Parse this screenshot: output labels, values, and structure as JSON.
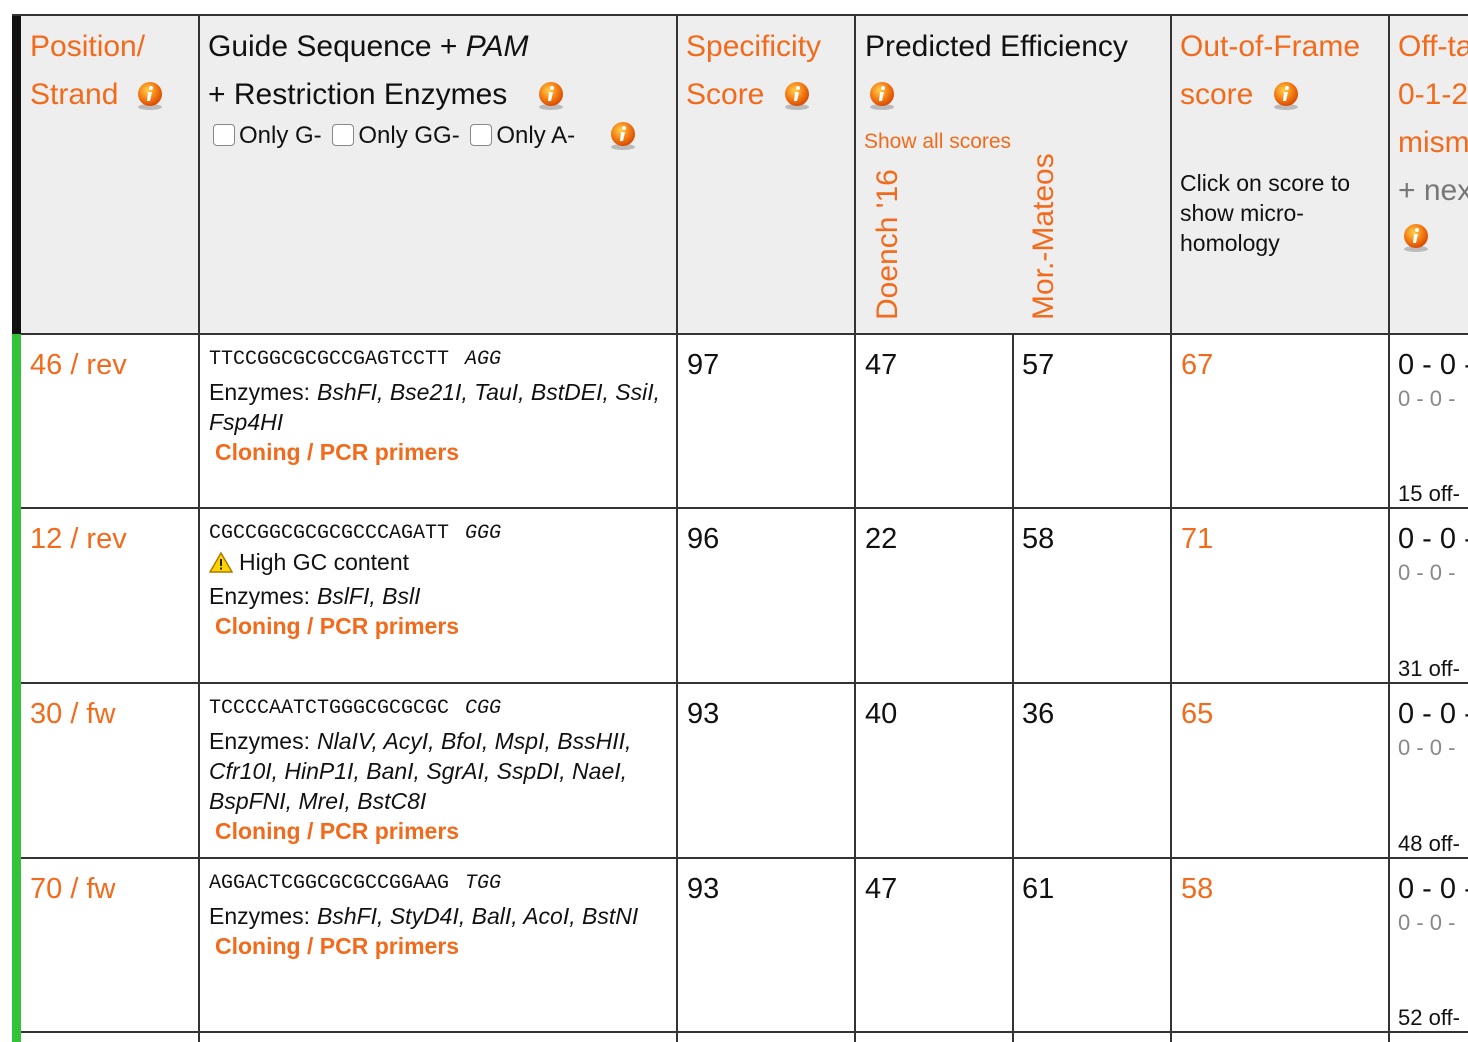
{
  "table": {
    "header": {
      "position": "Position/ Strand",
      "guide_sequence": "Guide Sequence +",
      "pam": "PAM",
      "restriction_enzymes": "+ Restriction Enzymes",
      "filters": [
        "Only G-",
        "Only GG-",
        "Only A-"
      ],
      "specificity": "Specificity Score",
      "efficiency": "Predicted Efficiency",
      "show_all_scores": "Show all scores",
      "doench": "Doench '16",
      "mateos": "Mor.-Mateos",
      "out_of_frame": "Out-of-Frame score",
      "out_of_frame_note": "Click on score to show micro-homology",
      "off_target": [
        "Off-ta",
        "0-1-2",
        "mism",
        "+ nex"
      ]
    },
    "rows": [
      {
        "position": "46 / rev",
        "sequence": "TTCCGGCGCGCCGAGTCCTT",
        "pam": "AGG",
        "warning": null,
        "enzymes_label": "Enzymes:",
        "enzymes": "BshFI, Bse21I, TauI, BstDEI, SsiI, Fsp4HI",
        "cloning": "Cloning / PCR primers",
        "specificity": "97",
        "doench": "47",
        "mateos": "57",
        "out_of_frame": "67",
        "off_target": "0 - 0 -",
        "off_target_sub": "0 - 0 -",
        "off_target_count": "15 off-"
      },
      {
        "position": "12 / rev",
        "sequence": "CGCCGGCGCGCGCCCAGATT",
        "pam": "GGG",
        "warning": "High GC content",
        "enzymes_label": "Enzymes:",
        "enzymes": "BslFI, BslI",
        "cloning": "Cloning / PCR primers",
        "specificity": "96",
        "doench": "22",
        "mateos": "58",
        "out_of_frame": "71",
        "off_target": "0 - 0 -",
        "off_target_sub": "0 - 0 -",
        "off_target_count": "31 off-"
      },
      {
        "position": "30 / fw",
        "sequence": "TCCCCAATCTGGGCGCGCGC",
        "pam": "CGG",
        "warning": null,
        "enzymes_label": "Enzymes:",
        "enzymes": "NlaIV, AcyI, BfoI, MspI, BssHII, Cfr10I, HinP1I, BanI, SgrAI, SspDI, NaeI, BspFNI, MreI, BstC8I",
        "cloning": "Cloning / PCR primers",
        "specificity": "93",
        "doench": "40",
        "mateos": "36",
        "out_of_frame": "65",
        "off_target": "0 - 0 -",
        "off_target_sub": "0 - 0 -",
        "off_target_count": "48 off-"
      },
      {
        "position": "70 / fw",
        "sequence": "AGGACTCGGCGCGCCGGAAG",
        "pam": "TGG",
        "warning": null,
        "enzymes_label": "Enzymes:",
        "enzymes": "BshFI, StyD4I, BalI, AcoI, BstNI",
        "cloning": "Cloning / PCR primers",
        "specificity": "93",
        "doench": "47",
        "mateos": "61",
        "out_of_frame": "58",
        "off_target": "0 - 0 -",
        "off_target_sub": "0 - 0 -",
        "off_target_count": "52 off-"
      }
    ]
  }
}
